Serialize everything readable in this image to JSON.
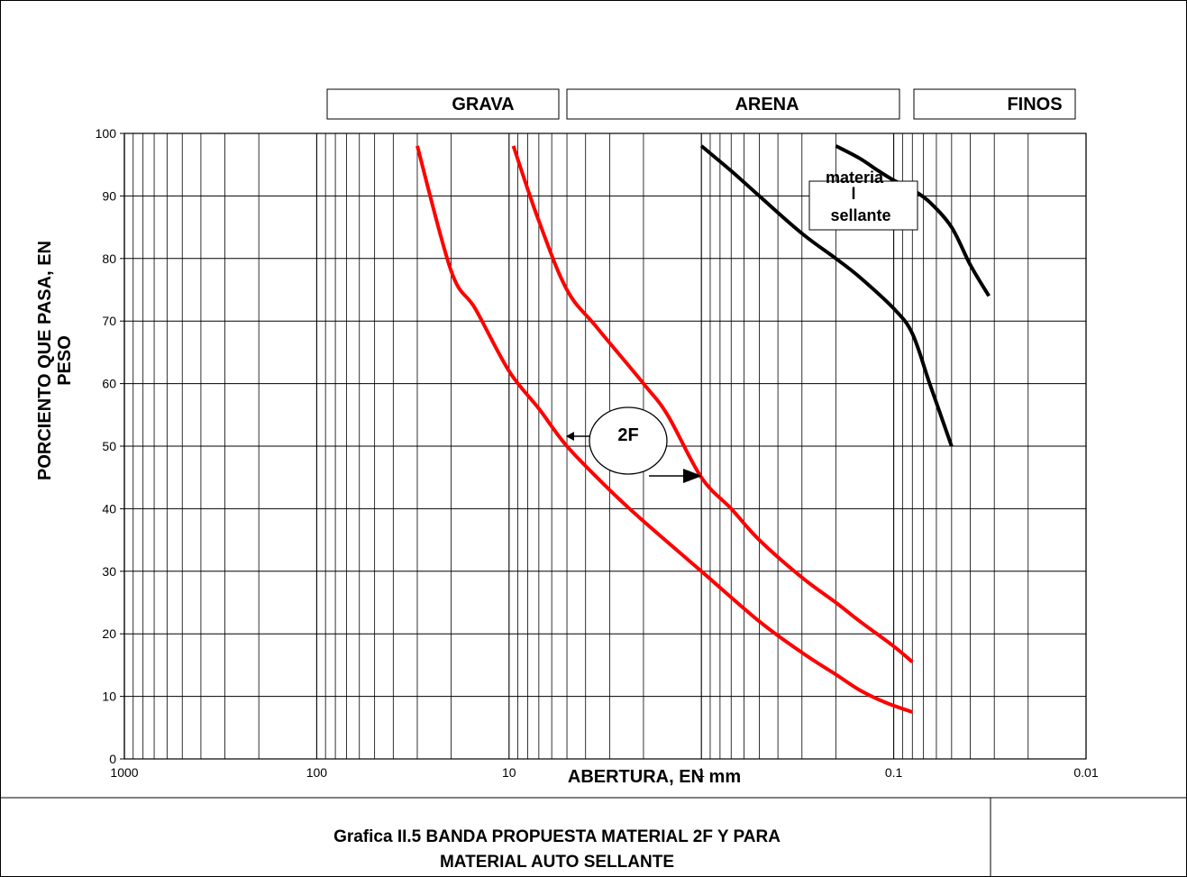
{
  "bands": [
    {
      "label": "GRAVA"
    },
    {
      "label": "ARENA"
    },
    {
      "label": "FINOS"
    }
  ],
  "caption": {
    "line1": "Grafica II.5 BANDA PROPUESTA MATERIAL 2F  Y PARA",
    "line2": "MATERIAL AUTO SELLANTE"
  },
  "annotations": {
    "band_2f": "2F",
    "sellante_line1": "materia",
    "sellante_line2": "l",
    "sellante_line3": "sellante"
  },
  "colors": {
    "band_2f": "#ff0000",
    "sellante": "#000000",
    "grid": "#000000"
  },
  "chart_data": {
    "type": "line",
    "title": "",
    "xlabel": "ABERTURA, EN mm",
    "ylabel_line1": "PORCIENTO QUE PASA, EN",
    "ylabel_line2": "PESO",
    "x_scale": "log",
    "x_reversed": true,
    "xlim": [
      1000,
      0.01
    ],
    "ylim": [
      0,
      100
    ],
    "grid": true,
    "x_ticks": [
      1000,
      100,
      10,
      1,
      0.1,
      0.01
    ],
    "x_tick_labels": [
      "1000",
      "100",
      "10",
      "1",
      "0.1",
      "0.01"
    ],
    "y_ticks": [
      0,
      10,
      20,
      30,
      40,
      50,
      60,
      70,
      80,
      90,
      100
    ],
    "y_tick_labels": [
      "0",
      "10",
      "20",
      "30",
      "40",
      "50",
      "60",
      "70",
      "80",
      "90",
      "100"
    ],
    "series": [
      {
        "group": "2F",
        "color": "#ff0000",
        "x": [
          30,
          20,
          15,
          10,
          7,
          5,
          3,
          2,
          1,
          0.5,
          0.3,
          0.2,
          0.15,
          0.11,
          0.08
        ],
        "y": [
          98,
          78,
          72,
          62,
          56,
          50,
          43,
          38,
          30,
          22,
          17,
          13.5,
          11,
          9,
          7.5
        ]
      },
      {
        "group": "2F",
        "color": "#ff0000",
        "x": [
          9.5,
          7,
          5,
          3.5,
          2,
          1.5,
          1,
          0.7,
          0.5,
          0.3,
          0.2,
          0.15,
          0.1,
          0.08
        ],
        "y": [
          98,
          86,
          75,
          69,
          60,
          55,
          45,
          40,
          35,
          29,
          25,
          22,
          18,
          15.5
        ]
      },
      {
        "group": "sellante",
        "color": "#000000",
        "x": [
          1,
          0.7,
          0.5,
          0.3,
          0.2,
          0.15,
          0.1,
          0.08,
          0.065,
          0.05
        ],
        "y": [
          98,
          94,
          90,
          84,
          80,
          77,
          72,
          68,
          60,
          50
        ]
      },
      {
        "group": "sellante",
        "color": "#000000",
        "x": [
          0.2,
          0.15,
          0.12,
          0.1,
          0.08,
          0.065,
          0.05,
          0.04,
          0.032
        ],
        "y": [
          98,
          96,
          94,
          92.5,
          91,
          89,
          85,
          79,
          74
        ]
      }
    ]
  }
}
